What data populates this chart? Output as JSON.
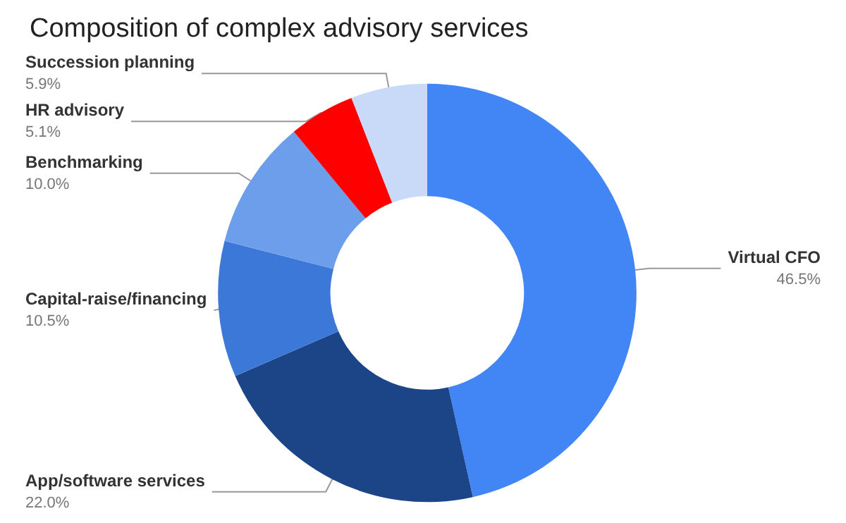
{
  "chart_data": {
    "type": "donut",
    "title": "Composition of complex advisory services",
    "categories": [
      "Virtual CFO",
      "App/software services",
      "Capital-raise/financing",
      "Benchmarking",
      "HR advisory",
      "Succession planning"
    ],
    "values": [
      46.5,
      22.0,
      10.5,
      10.0,
      5.1,
      5.9
    ],
    "value_labels": [
      "46.5%",
      "22.0%",
      "10.5%",
      "10.0%",
      "5.1%",
      "5.9%"
    ],
    "colors": [
      "#4285f4",
      "#1c4587",
      "#3c78d8",
      "#6d9eeb",
      "#ff0000",
      "#c9daf8"
    ],
    "legend": false
  }
}
